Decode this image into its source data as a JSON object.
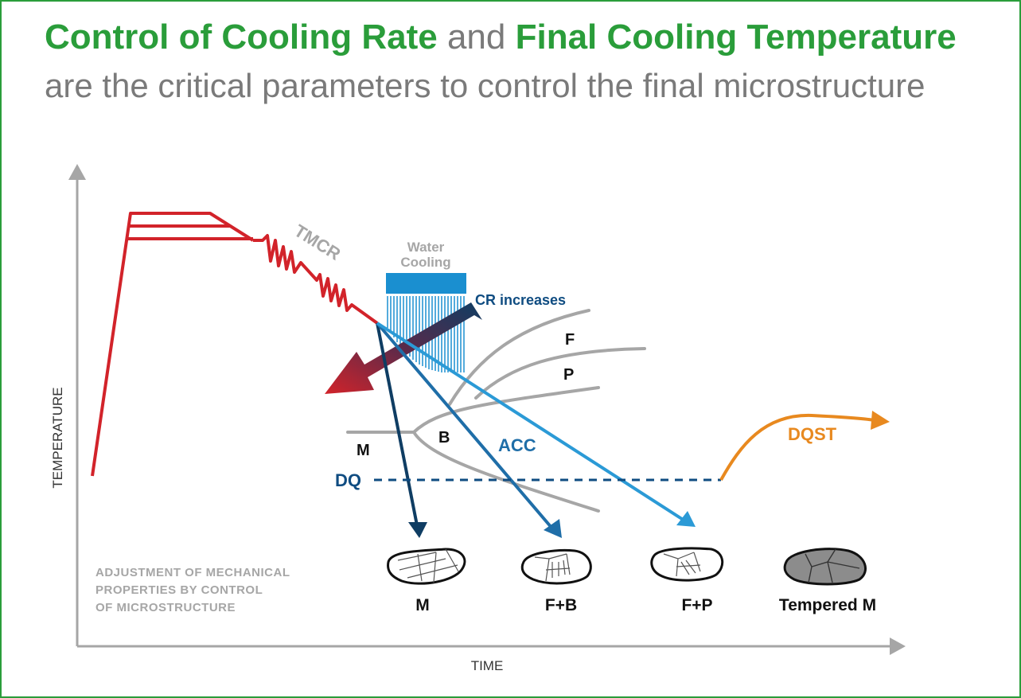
{
  "title": {
    "part1": "Control of Cooling Rate",
    "connector": " and ",
    "part2": "Final Cooling Temperature",
    "subtitle": "are the critical parameters to control the final microstructure"
  },
  "axes": {
    "x_label": "TIME",
    "y_label": "TEMPERATURE"
  },
  "labels": {
    "tmcr": "TMCR",
    "water_line1": "Water",
    "water_line2": "Cooling",
    "cr_increases": "CR increases",
    "ferrite": "F",
    "pearlite": "P",
    "bainite": "B",
    "martensite": "M",
    "acc": "ACC",
    "dq": "DQ",
    "dqst": "DQST"
  },
  "note": {
    "line1": "ADJUSTMENT OF MECHANICAL",
    "line2": "PROPERTIES BY CONTROL",
    "line3": "OF MICROSTRUCTURE"
  },
  "microstructures": [
    "M",
    "F+B",
    "F+P",
    "Tempered M"
  ],
  "colors": {
    "title_green": "#2a9d3a",
    "process_red": "#d2232a",
    "curve_gray": "#a6a6a6",
    "dark_blue": "#0f3d63",
    "mid_blue": "#1f6ea8",
    "light_blue": "#2b9ad6",
    "orange": "#e8891f"
  }
}
